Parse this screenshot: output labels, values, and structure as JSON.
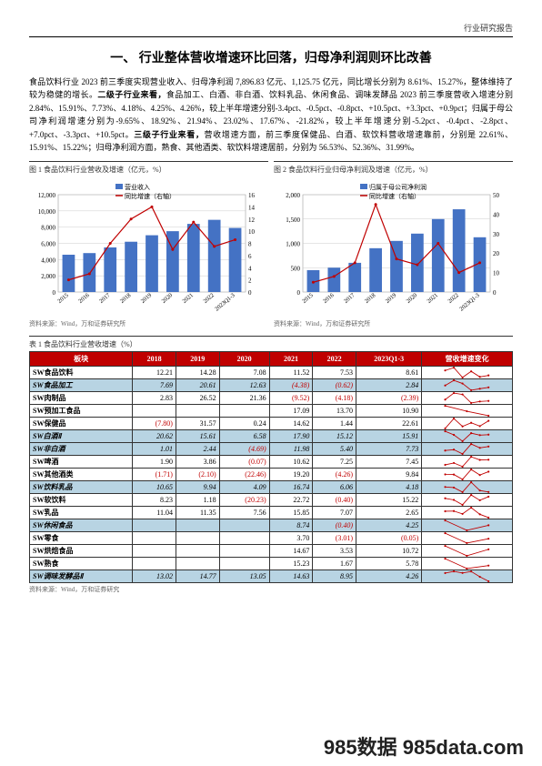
{
  "header_label": "行业研究报告",
  "main_title": "一、 行业整体营收增速环比回落，归母净利润则环比改善",
  "body_text": "食品饮料行业 2023 前三季度实现营业收入、归母净利润 7,896.83 亿元、1,125.75 亿元，同比增长分别为 8.61%、15.27%，整体维持了较为稳健的增长。<b>二级子行业来看，</b>食品加工、白酒、非白酒、饮料乳品、休闲食品、调味发酵品 2023 前三季度营收入增速分别 2.84%、15.91%、7.73%、4.18%、4.25%、4.26%，较上半年增速分别-3.4pct、-0.5pct、-0.8pct、+10.5pct、+3.3pct、+0.9pct；归属于母公司净利润增速分别为-9.65%、18.92%、21.94%、23.02%、17.67%、-21.82%，较上半年增速分别-5.2pct、-0.4pct、-2.8pct、+7.0pct、-3.3pct、+10.5pct。<b>三级子行业来看，</b>营收增速方面，前三季度保健品、白酒、软饮料营收增速靠前，分别是 22.61%、15.91%、15.22%；归母净利润方面，熟食、其他酒类、软饮料增速居前，分别为 56.53%、52.36%、31.99%。",
  "chart1": {
    "title": "图 1  食品饮料行业营收及增速（亿元，%）",
    "source": "资料来源：Wind，万和证券研究所",
    "x_labels": [
      "2015",
      "2016",
      "2017",
      "2018",
      "2019",
      "2020",
      "2021",
      "2022",
      "2023Q1-3"
    ],
    "legend_bar": "营业收入",
    "legend_line": "同比增速（右轴）",
    "bar_values": [
      4600,
      4800,
      5500,
      6200,
      7000,
      7500,
      8400,
      8900,
      7900
    ],
    "bar_color": "#4472c4",
    "y1_max": 12000,
    "y1_step": 2000,
    "line_values": [
      2,
      3,
      8,
      12,
      14,
      7,
      11.5,
      7.5,
      8.6
    ],
    "line_color": "#c00000",
    "y2_max": 16,
    "y2_step": 2
  },
  "chart2": {
    "title": "图 2  食品饮料行业归母净利润及增速（亿元，%）",
    "source": "资料来源：Wind，万和证券研究所",
    "x_labels": [
      "2015",
      "2016",
      "2017",
      "2018",
      "2019",
      "2020",
      "2021",
      "2022",
      "2023Q1-3"
    ],
    "legend_bar": "归属于母公司净利润",
    "legend_line": "同比增速（右轴）",
    "bar_values": [
      450,
      500,
      600,
      900,
      1050,
      1200,
      1500,
      1700,
      1125
    ],
    "bar_color": "#4472c4",
    "y1_max": 2000,
    "y1_step": 500,
    "line_values": [
      5,
      8,
      15,
      45,
      17,
      14,
      25,
      10,
      15
    ],
    "line_color": "#c00000",
    "y2_max": 50,
    "y2_step": 10
  },
  "table": {
    "title": "表 1  食品饮料行业营收增速（%）",
    "source": "资料来源：Wind，万和证券研究",
    "col_name": "板块",
    "year_cols": [
      "2018",
      "2019",
      "2020",
      "2021",
      "2022",
      "2023Q1-3"
    ],
    "trend_col": "营收增速变化",
    "rows": [
      {
        "name": "SW食品饮料",
        "vals": [
          "12.21",
          "14.28",
          "7.08",
          "11.52",
          "7.53",
          "8.61"
        ],
        "cat": false
      },
      {
        "name": "SW食品加工",
        "vals": [
          "7.69",
          "20.61",
          "12.63",
          "(4.38)",
          "(0.62)",
          "2.84"
        ],
        "cat": true
      },
      {
        "name": "SW肉制品",
        "vals": [
          "2.83",
          "26.52",
          "21.36",
          "(9.52)",
          "(4.18)",
          "(2.39)"
        ],
        "cat": false
      },
      {
        "name": "SW预加工食品",
        "vals": [
          "",
          "",
          "",
          "17.09",
          "13.70",
          "10.90"
        ],
        "cat": false
      },
      {
        "name": "SW保健品",
        "vals": [
          "(7.80)",
          "31.57",
          "0.24",
          "14.62",
          "1.44",
          "22.61"
        ],
        "cat": false
      },
      {
        "name": "SW白酒Ⅱ",
        "vals": [
          "20.62",
          "15.61",
          "6.58",
          "17.90",
          "15.12",
          "15.91"
        ],
        "cat": true
      },
      {
        "name": "SW非白酒",
        "vals": [
          "1.01",
          "2.44",
          "(4.69)",
          "11.98",
          "5.40",
          "7.73"
        ],
        "cat": true
      },
      {
        "name": "SW啤酒",
        "vals": [
          "1.90",
          "3.86",
          "(0.07)",
          "10.62",
          "7.25",
          "7.45"
        ],
        "cat": false
      },
      {
        "name": "SW其他酒类",
        "vals": [
          "(1.71)",
          "(2.10)",
          "(22.46)",
          "19.20",
          "(4.26)",
          "9.84"
        ],
        "cat": false
      },
      {
        "name": "SW饮料乳品",
        "vals": [
          "10.65",
          "9.94",
          "4.09",
          "16.74",
          "6.06",
          "4.18"
        ],
        "cat": true
      },
      {
        "name": "SW软饮料",
        "vals": [
          "8.23",
          "1.18",
          "(20.23)",
          "22.72",
          "(0.40)",
          "15.22"
        ],
        "cat": false
      },
      {
        "name": "SW乳品",
        "vals": [
          "11.04",
          "11.35",
          "7.56",
          "15.85",
          "7.07",
          "2.65"
        ],
        "cat": false
      },
      {
        "name": "SW休闲食品",
        "vals": [
          "",
          "",
          "",
          "8.74",
          "(0.40)",
          "4.25"
        ],
        "cat": true
      },
      {
        "name": "SW零食",
        "vals": [
          "",
          "",
          "",
          "3.70",
          "(3.01)",
          "(0.05)"
        ],
        "cat": false
      },
      {
        "name": "SW烘焙食品",
        "vals": [
          "",
          "",
          "",
          "14.67",
          "3.53",
          "10.72"
        ],
        "cat": false
      },
      {
        "name": "SW熟食",
        "vals": [
          "",
          "",
          "",
          "15.23",
          "1.67",
          "5.78"
        ],
        "cat": false
      },
      {
        "name": "SW调味发酵品Ⅱ",
        "vals": [
          "13.02",
          "14.77",
          "13.05",
          "14.63",
          "8.95",
          "4.26"
        ],
        "cat": true
      }
    ]
  },
  "watermark": "985数据 985data.com"
}
